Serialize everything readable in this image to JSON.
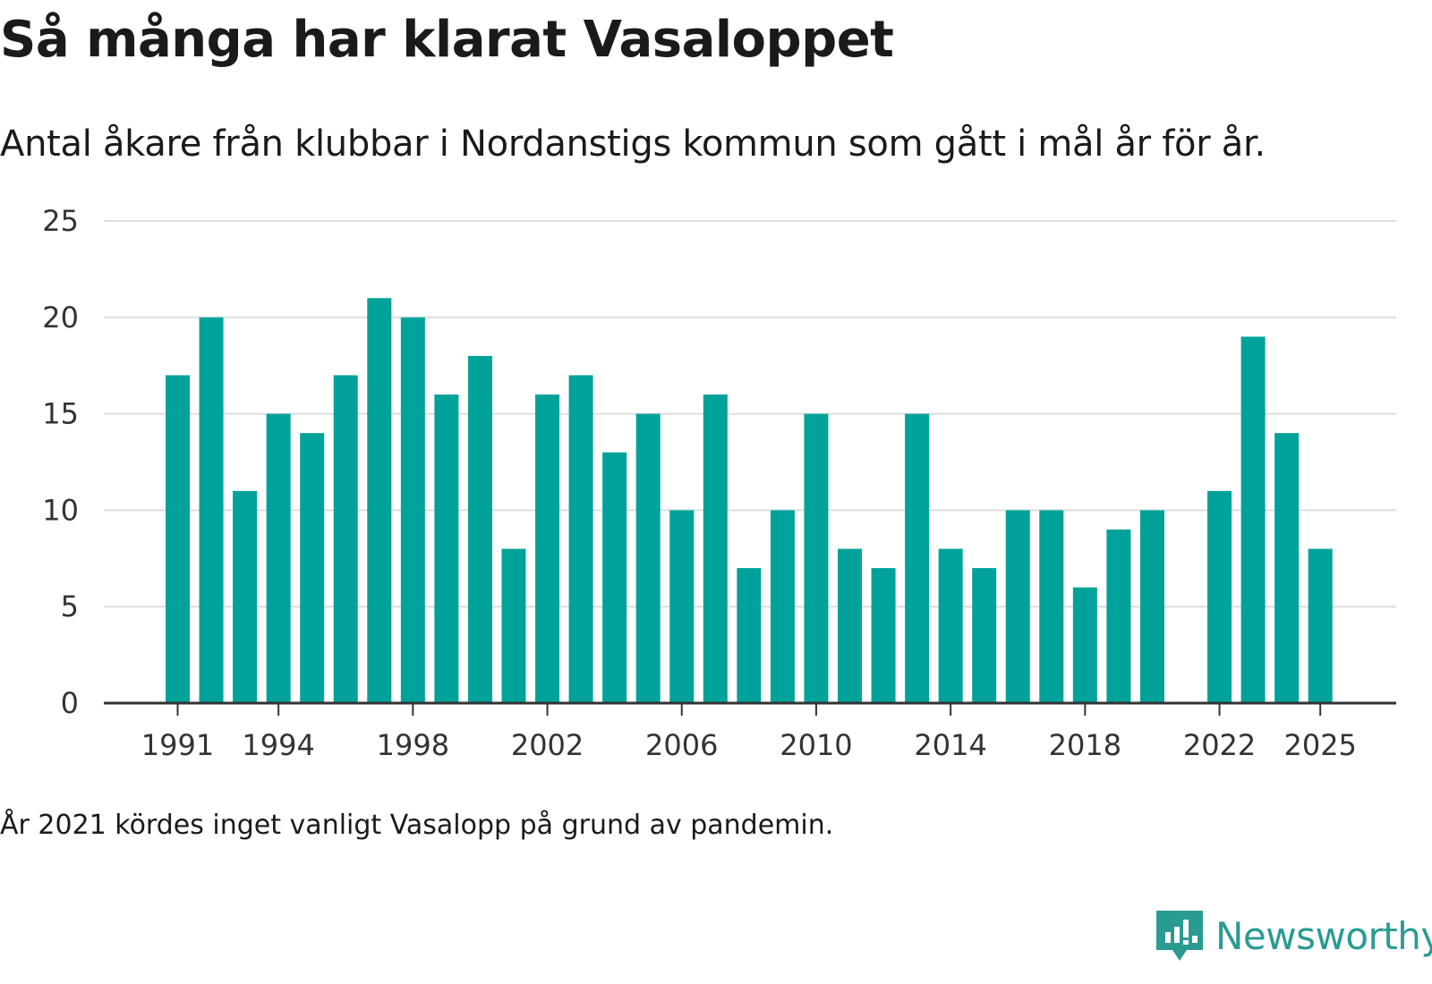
{
  "header": {
    "title": "Så många har klarat Vasaloppet",
    "subtitle": "Antal åkare från klubbar i Nordanstigs kommun som gått i mål år för år."
  },
  "footer": {
    "note": "År 2021 kördes inget vanligt Vasalopp på grund av pandemin.",
    "brand": "Newsworthy",
    "brand_icon": "newsworthy-logo-icon"
  },
  "colors": {
    "bar": "#00a29a",
    "grid": "#dddddd",
    "axis": "#333333",
    "brand": "#2a9b91"
  },
  "chart_data": {
    "type": "bar",
    "title": "Så många har klarat Vasaloppet",
    "subtitle": "Antal åkare från klubbar i Nordanstigs kommun som gått i mål år för år.",
    "xlabel": "",
    "ylabel": "",
    "grid": true,
    "ylim": [
      0,
      25
    ],
    "yticks": [
      0,
      5,
      10,
      15,
      20,
      25
    ],
    "xticks": [
      1991,
      1994,
      1998,
      2002,
      2006,
      2010,
      2014,
      2018,
      2022,
      2025
    ],
    "categories": [
      1991,
      1992,
      1993,
      1994,
      1995,
      1996,
      1997,
      1998,
      1999,
      2000,
      2001,
      2002,
      2003,
      2004,
      2005,
      2006,
      2007,
      2008,
      2009,
      2010,
      2011,
      2012,
      2013,
      2014,
      2015,
      2016,
      2017,
      2018,
      2019,
      2020,
      2021,
      2022,
      2023,
      2024,
      2025
    ],
    "values": [
      17,
      20,
      11,
      15,
      14,
      17,
      21,
      20,
      16,
      18,
      8,
      16,
      17,
      13,
      15,
      10,
      16,
      7,
      10,
      15,
      8,
      7,
      15,
      8,
      7,
      10,
      10,
      6,
      9,
      10,
      null,
      11,
      19,
      14,
      8
    ]
  }
}
